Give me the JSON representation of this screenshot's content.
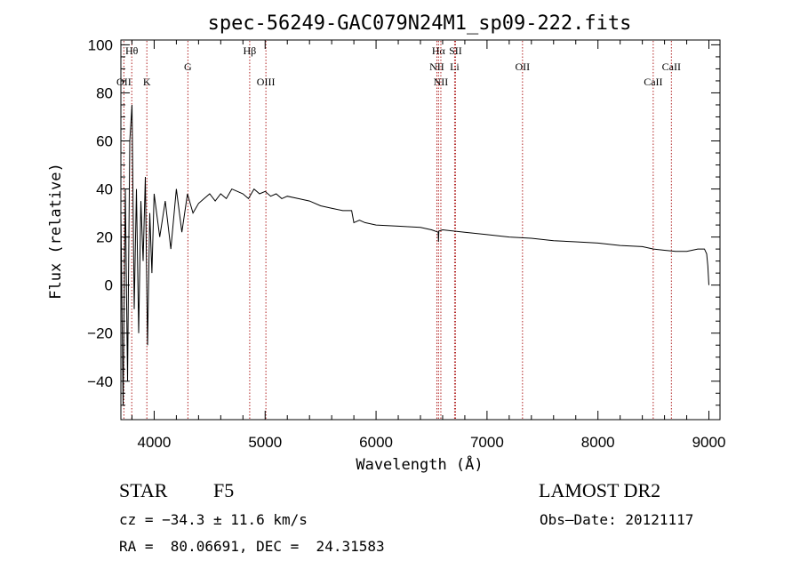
{
  "chart_data": {
    "type": "line",
    "title": "spec-56249-GAC079N24M1_sp09-222.fits",
    "xlabel": "Wavelength (Å)",
    "ylabel": "Flux (relative)",
    "xlim": [
      3700,
      9100
    ],
    "ylim": [
      -56,
      102
    ],
    "xticks": [
      "4000",
      "5000",
      "6000",
      "7000",
      "8000",
      "9000"
    ],
    "yticks": [
      "100",
      "80",
      "60",
      "40",
      "20",
      "0",
      "−20",
      "−40"
    ],
    "grid": false,
    "series": [
      {
        "x": [
          3700,
          3720,
          3740,
          3760,
          3780,
          3800,
          3820,
          3840,
          3860,
          3880,
          3900,
          3920,
          3940,
          3960,
          3980,
          4000,
          4050,
          4100,
          4150,
          4200,
          4250,
          4300,
          4350,
          4400,
          4450,
          4500,
          4550,
          4600,
          4650,
          4700,
          4750,
          4800,
          4850,
          4900,
          4950,
          5000,
          5050,
          5100,
          5150,
          5200,
          5300,
          5400,
          5500,
          5600,
          5700,
          5780,
          5800,
          5850,
          5900,
          6000,
          6200,
          6400,
          6500,
          6560,
          6563,
          6566,
          6600,
          6800,
          7000,
          7200,
          7400,
          7600,
          7800,
          8000,
          8200,
          8400,
          8500,
          8600,
          8700,
          8800,
          8900,
          8960,
          8980,
          8990,
          9000
        ],
        "y": [
          30,
          -50,
          40,
          -40,
          60,
          75,
          -10,
          40,
          -20,
          35,
          10,
          45,
          -25,
          30,
          5,
          38,
          20,
          35,
          15,
          40,
          22,
          38,
          30,
          34,
          36,
          38,
          35,
          38,
          36,
          40,
          39,
          38,
          36,
          40,
          38,
          39,
          37,
          38,
          36,
          37,
          36,
          35,
          33,
          32,
          31,
          31,
          26,
          27,
          26,
          25,
          24.5,
          24,
          23,
          22,
          18,
          22.5,
          23,
          22,
          21,
          20,
          19.5,
          18.5,
          18,
          17.5,
          16.5,
          16,
          15,
          14.5,
          14,
          14,
          15,
          15,
          13,
          8,
          0
        ]
      }
    ],
    "lines": [
      {
        "label": "Hθ",
        "x": 3798,
        "row": 0
      },
      {
        "label": "OII",
        "x": 3727,
        "row": 2
      },
      {
        "label": "K",
        "x": 3934,
        "row": 2
      },
      {
        "label": "G",
        "x": 4304,
        "row": 1
      },
      {
        "label": "Hβ",
        "x": 4861,
        "row": 0
      },
      {
        "label": "OIII",
        "x": 5007,
        "row": 2
      },
      {
        "label": "Hα",
        "x": 6563,
        "row": 0
      },
      {
        "label": "SII",
        "x": 6716,
        "row": 0
      },
      {
        "label": "NII",
        "x": 6548,
        "row": 1
      },
      {
        "label": "Li",
        "x": 6708,
        "row": 1
      },
      {
        "label": "NII",
        "x": 6584,
        "row": 2
      },
      {
        "label": "OII",
        "x": 7320,
        "row": 1
      },
      {
        "label": "CaII",
        "x": 8498,
        "row": 2
      },
      {
        "label": "CaII",
        "x": 8662,
        "row": 1
      }
    ]
  },
  "info": {
    "class_label": "STAR",
    "subclass": "F5",
    "survey": "LAMOST DR2",
    "cz": "cz = −34.3 ± 11.6 km/s",
    "obs_date": "Obs–Date: 20121117",
    "coords": "RA =  80.06691, DEC =  24.31583"
  },
  "colors": {
    "line_marker": "#b02020",
    "spectrum": "#000000"
  }
}
